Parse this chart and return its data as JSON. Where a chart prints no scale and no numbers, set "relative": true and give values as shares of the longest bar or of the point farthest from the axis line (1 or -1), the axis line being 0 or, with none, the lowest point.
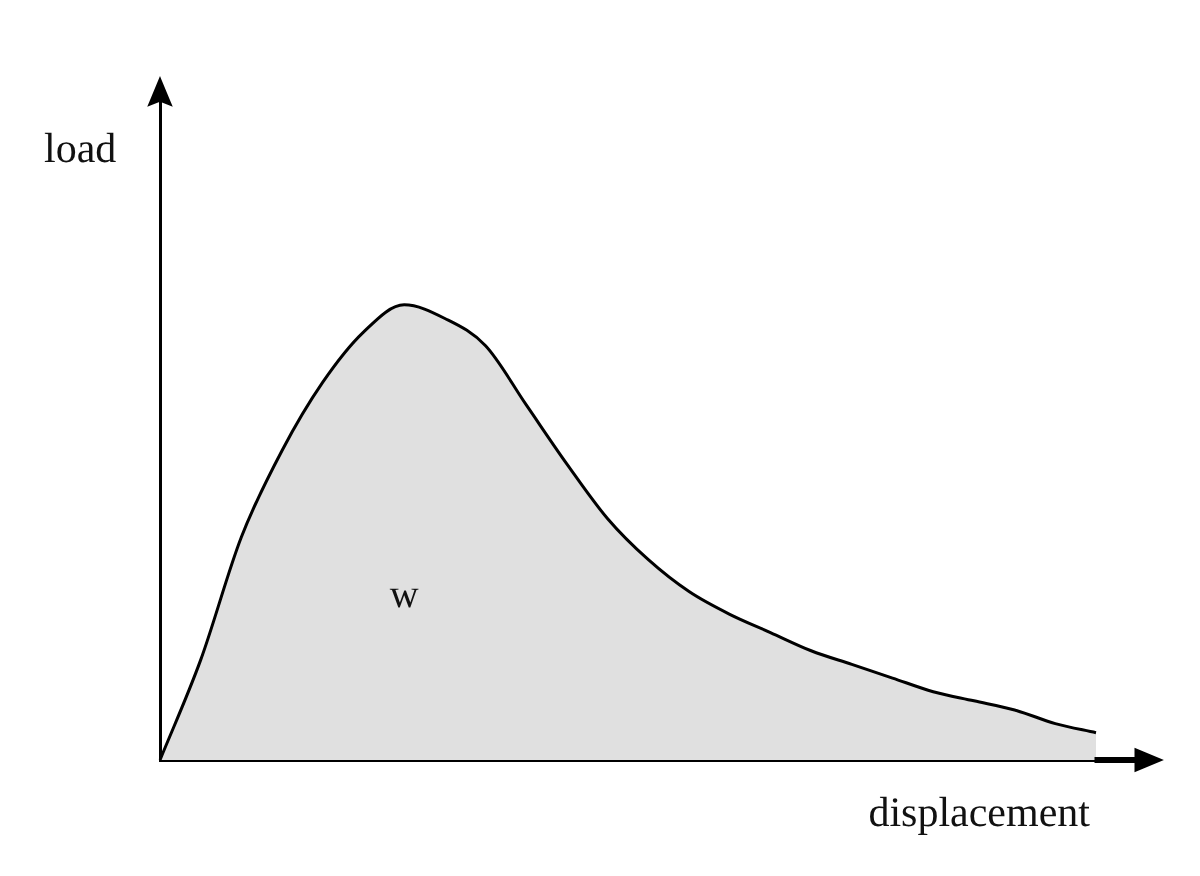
{
  "chart_data": {
    "type": "area",
    "relative": true,
    "xlabel": "displacement",
    "ylabel": "load",
    "annotations": [
      "w"
    ],
    "categories": [
      null,
      null,
      null,
      null,
      null,
      null,
      null,
      null,
      null,
      null,
      null,
      null,
      null,
      null,
      null,
      null,
      null,
      null,
      null,
      null,
      null,
      null,
      null,
      null
    ],
    "series": [
      {
        "color": "#e0e0e0",
        "values": [
          0,
          0.22,
          0.49,
          0.68,
          0.83,
          0.94,
          1.0,
          0.97,
          0.91,
          0.78,
          0.65,
          0.53,
          0.44,
          0.37,
          0.32,
          0.28,
          0.24,
          0.21,
          0.18,
          0.15,
          0.13,
          0.11,
          0.08,
          0.06
        ]
      }
    ],
    "grid": false,
    "legend": false
  }
}
